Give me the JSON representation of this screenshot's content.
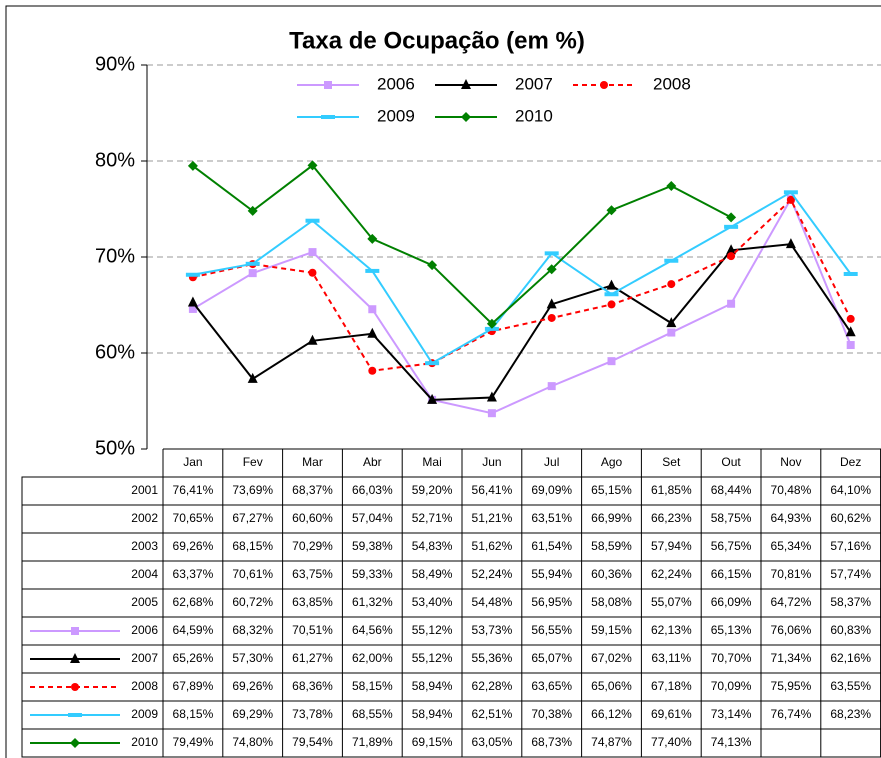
{
  "chart_data": {
    "type": "line",
    "title": "Taxa de Ocupação (em %)",
    "categories": [
      "Jan",
      "Fev",
      "Mar",
      "Abr",
      "Mai",
      "Jun",
      "Jul",
      "Ago",
      "Set",
      "Out",
      "Nov",
      "Dez"
    ],
    "ylim": [
      50,
      90
    ],
    "yticks": [
      {
        "value": 50,
        "label": "50%"
      },
      {
        "value": 60,
        "label": "60%"
      },
      {
        "value": 70,
        "label": "70%"
      },
      {
        "value": 80,
        "label": "80%"
      },
      {
        "value": 90,
        "label": "90%"
      }
    ],
    "grid": true,
    "series": [
      {
        "name": "2001",
        "values": [
          76.41,
          73.69,
          68.37,
          66.03,
          59.2,
          56.41,
          69.09,
          65.15,
          61.85,
          68.44,
          70.48,
          64.1
        ],
        "value_labels": [
          "76,41%",
          "73,69%",
          "68,37%",
          "66,03%",
          "59,20%",
          "56,41%",
          "69,09%",
          "65,15%",
          "61,85%",
          "68,44%",
          "70,48%",
          "64,10%"
        ]
      },
      {
        "name": "2002",
        "values": [
          70.65,
          67.27,
          60.6,
          57.04,
          52.71,
          51.21,
          63.51,
          66.99,
          66.23,
          58.75,
          64.93,
          60.62
        ],
        "value_labels": [
          "70,65%",
          "67,27%",
          "60,60%",
          "57,04%",
          "52,71%",
          "51,21%",
          "63,51%",
          "66,99%",
          "66,23%",
          "58,75%",
          "64,93%",
          "60,62%"
        ]
      },
      {
        "name": "2003",
        "values": [
          69.26,
          68.15,
          70.29,
          59.38,
          54.83,
          51.62,
          61.54,
          58.59,
          57.94,
          56.75,
          65.34,
          57.16
        ],
        "value_labels": [
          "69,26%",
          "68,15%",
          "70,29%",
          "59,38%",
          "54,83%",
          "51,62%",
          "61,54%",
          "58,59%",
          "57,94%",
          "56,75%",
          "65,34%",
          "57,16%"
        ]
      },
      {
        "name": "2004",
        "values": [
          63.37,
          70.61,
          63.75,
          59.33,
          58.49,
          52.24,
          55.94,
          60.36,
          62.24,
          66.15,
          70.81,
          57.74
        ],
        "value_labels": [
          "63,37%",
          "70,61%",
          "63,75%",
          "59,33%",
          "58,49%",
          "52,24%",
          "55,94%",
          "60,36%",
          "62,24%",
          "66,15%",
          "70,81%",
          "57,74%"
        ]
      },
      {
        "name": "2005",
        "values": [
          62.68,
          60.72,
          63.85,
          61.32,
          53.4,
          54.48,
          56.95,
          58.08,
          55.07,
          66.09,
          64.72,
          58.37
        ],
        "value_labels": [
          "62,68%",
          "60,72%",
          "63,85%",
          "61,32%",
          "53,40%",
          "54,48%",
          "56,95%",
          "58,08%",
          "55,07%",
          "66,09%",
          "64,72%",
          "58,37%"
        ]
      },
      {
        "name": "2006",
        "color": "#cc99ff",
        "marker": "square",
        "values": [
          64.59,
          68.32,
          70.51,
          64.56,
          55.12,
          53.73,
          56.55,
          59.15,
          62.13,
          65.13,
          76.06,
          60.83
        ],
        "value_labels": [
          "64,59%",
          "68,32%",
          "70,51%",
          "64,56%",
          "55,12%",
          "53,73%",
          "56,55%",
          "59,15%",
          "62,13%",
          "65,13%",
          "76,06%",
          "60,83%"
        ]
      },
      {
        "name": "2007",
        "color": "#000000",
        "marker": "triangle",
        "values": [
          65.26,
          57.3,
          61.27,
          62.0,
          55.12,
          55.36,
          65.07,
          67.02,
          63.11,
          70.7,
          71.34,
          62.16
        ],
        "value_labels": [
          "65,26%",
          "57,30%",
          "61,27%",
          "62,00%",
          "55,12%",
          "55,36%",
          "65,07%",
          "67,02%",
          "63,11%",
          "70,70%",
          "71,34%",
          "62,16%"
        ]
      },
      {
        "name": "2008",
        "color": "#ff0000",
        "marker": "circle",
        "dashed": true,
        "values": [
          67.89,
          69.26,
          68.36,
          58.15,
          58.94,
          62.28,
          63.65,
          65.06,
          67.18,
          70.09,
          75.95,
          63.55
        ],
        "value_labels": [
          "67,89%",
          "69,26%",
          "68,36%",
          "58,15%",
          "58,94%",
          "62,28%",
          "63,65%",
          "65,06%",
          "67,18%",
          "70,09%",
          "75,95%",
          "63,55%"
        ]
      },
      {
        "name": "2009",
        "color": "#33ccff",
        "marker": "dash",
        "values": [
          68.15,
          69.29,
          73.78,
          68.55,
          58.94,
          62.51,
          70.38,
          66.12,
          69.61,
          73.14,
          76.74,
          68.23
        ],
        "value_labels": [
          "68,15%",
          "69,29%",
          "73,78%",
          "68,55%",
          "58,94%",
          "62,51%",
          "70,38%",
          "66,12%",
          "69,61%",
          "73,14%",
          "76,74%",
          "68,23%"
        ]
      },
      {
        "name": "2010",
        "color": "#008000",
        "marker": "diamond",
        "values": [
          79.49,
          74.8,
          79.54,
          71.89,
          69.15,
          63.05,
          68.73,
          74.87,
          77.4,
          74.13,
          null,
          null
        ],
        "value_labels": [
          "79,49%",
          "74,80%",
          "79,54%",
          "71,89%",
          "69,15%",
          "63,05%",
          "68,73%",
          "74,87%",
          "77,40%",
          "74,13%",
          null,
          null
        ]
      }
    ]
  }
}
